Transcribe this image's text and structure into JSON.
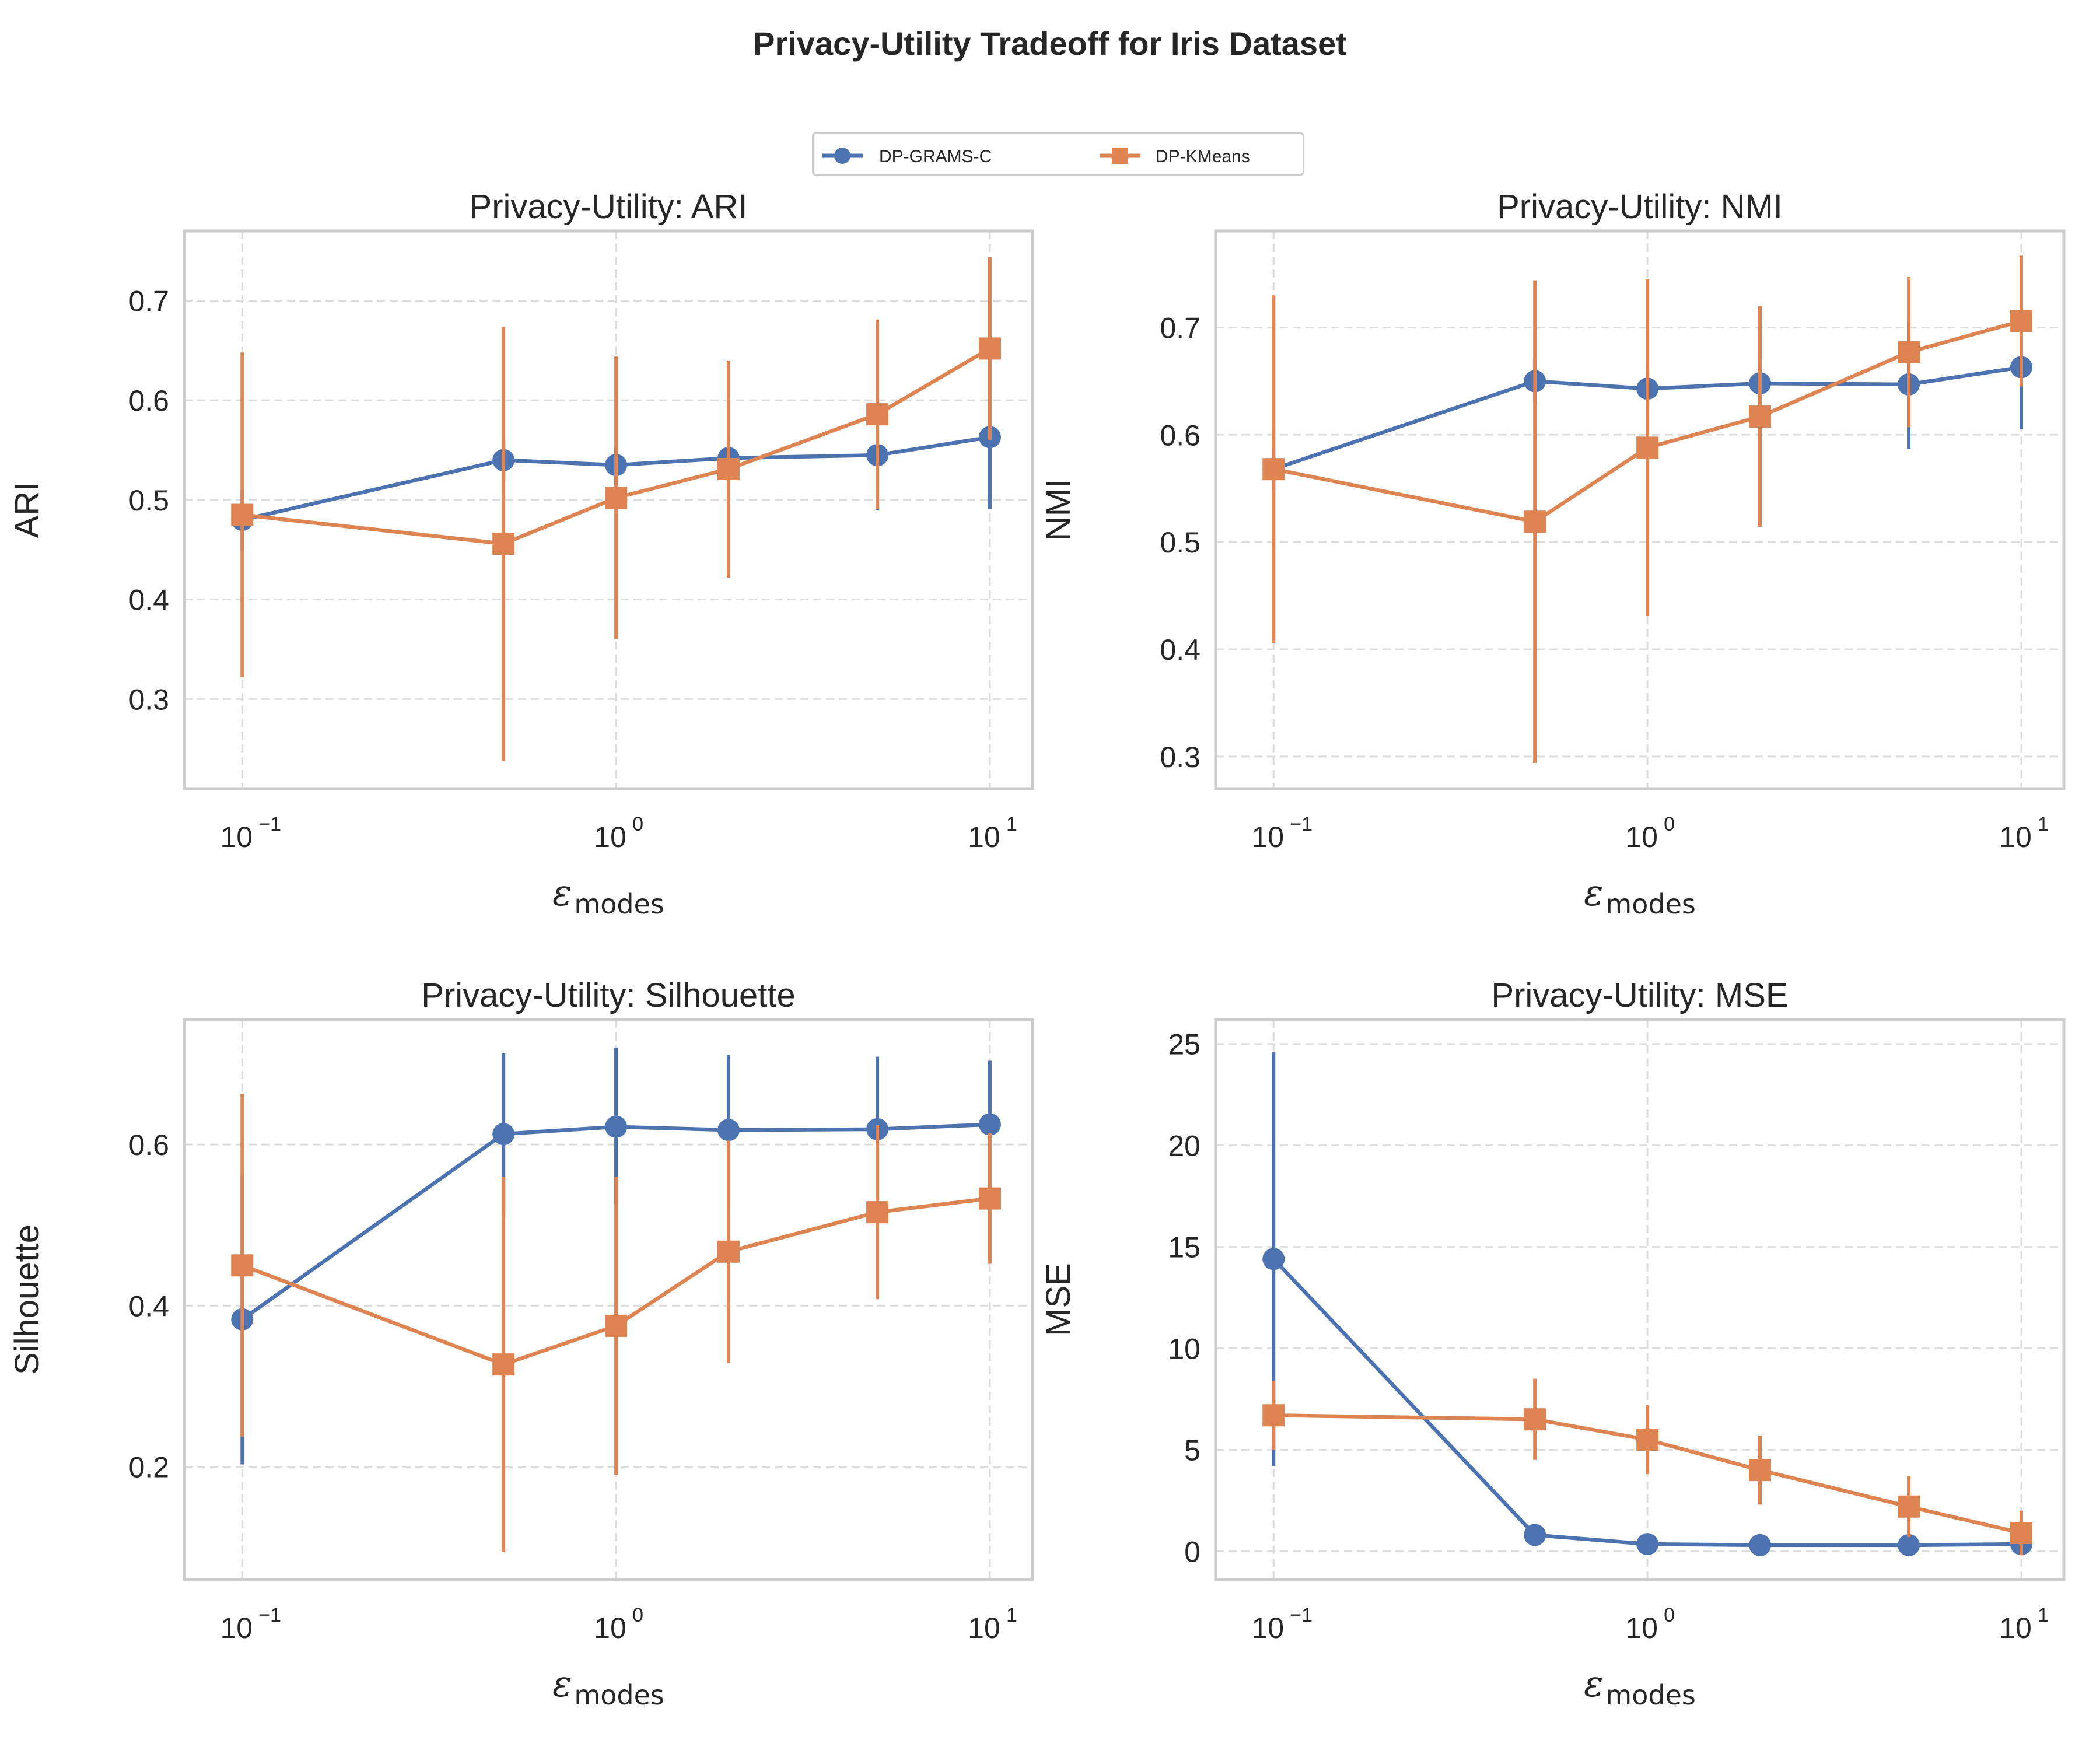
{
  "figure": {
    "title": "Privacy-Utility Tradeoff for Iris Dataset",
    "colors": {
      "DP-GRAMS-C": "#4c72b0",
      "DP-KMeans": "#dd8452",
      "grid": "#dddddd",
      "axes": "#cccccc",
      "text": "#262626"
    }
  },
  "legend": {
    "placement": "top-center",
    "items": [
      {
        "label": "DP-GRAMS-C",
        "marker": "circle",
        "color": "#4c72b0"
      },
      {
        "label": "DP-KMeans",
        "marker": "square",
        "color": "#dd8452"
      }
    ]
  },
  "chart_data": [
    {
      "type": "line",
      "title": "Privacy-Utility: ARI",
      "xlabel": "ε_modes",
      "ylabel": "ARI",
      "xscale": "log",
      "xlim": [
        0.07,
        13
      ],
      "ylim": [
        0.21,
        0.77
      ],
      "yticks": [
        0.3,
        0.4,
        0.5,
        0.6,
        0.7
      ],
      "ytick_labels": [
        "0.3",
        "0.4",
        "0.5",
        "0.6",
        "0.7"
      ],
      "grid": true,
      "x": [
        0.1,
        0.5,
        1,
        2,
        5,
        10
      ],
      "series": [
        {
          "name": "DP-GRAMS-C",
          "marker": "circle",
          "values": [
            0.48,
            0.54,
            0.535,
            0.542,
            0.545,
            0.563
          ],
          "err": [
            0.03,
            0.02,
            0.02,
            0.02,
            0.055,
            0.072
          ]
        },
        {
          "name": "DP-KMeans",
          "marker": "square",
          "values": [
            0.485,
            0.456,
            0.502,
            0.531,
            0.586,
            0.652
          ],
          "err": [
            0.163,
            0.218,
            0.142,
            0.109,
            0.095,
            0.092
          ]
        }
      ]
    },
    {
      "type": "line",
      "title": "Privacy-Utility: NMI",
      "xlabel": "ε_modes",
      "ylabel": "NMI",
      "xscale": "log",
      "xlim": [
        0.07,
        13
      ],
      "ylim": [
        0.27,
        0.79
      ],
      "yticks": [
        0.3,
        0.4,
        0.5,
        0.6,
        0.7
      ],
      "ytick_labels": [
        "0.3",
        "0.4",
        "0.5",
        "0.6",
        "0.7"
      ],
      "grid": true,
      "x": [
        0.1,
        0.5,
        1,
        2,
        5,
        10
      ],
      "series": [
        {
          "name": "DP-GRAMS-C",
          "marker": "circle",
          "values": [
            0.568,
            0.65,
            0.643,
            0.648,
            0.647,
            0.663
          ],
          "err": [
            0.02,
            0.02,
            0.02,
            0.02,
            0.06,
            0.058
          ]
        },
        {
          "name": "DP-KMeans",
          "marker": "square",
          "values": [
            0.568,
            0.519,
            0.588,
            0.617,
            0.677,
            0.706
          ],
          "err": [
            0.162,
            0.225,
            0.157,
            0.103,
            0.07,
            0.061
          ]
        }
      ]
    },
    {
      "type": "line",
      "title": "Privacy-Utility: Silhouette",
      "xlabel": "ε_modes",
      "ylabel": "Silhouette",
      "xscale": "log",
      "xlim": [
        0.07,
        13
      ],
      "ylim": [
        0.06,
        0.755
      ],
      "yticks": [
        0.2,
        0.4,
        0.6
      ],
      "ytick_labels": [
        "0.2",
        "0.4",
        "0.6"
      ],
      "grid": true,
      "x": [
        0.1,
        0.5,
        1,
        2,
        5,
        10
      ],
      "series": [
        {
          "name": "DP-GRAMS-C",
          "marker": "circle",
          "values": [
            0.383,
            0.613,
            0.622,
            0.618,
            0.619,
            0.625
          ],
          "err": [
            0.18,
            0.1,
            0.098,
            0.093,
            0.09,
            0.079
          ]
        },
        {
          "name": "DP-KMeans",
          "marker": "square",
          "values": [
            0.45,
            0.327,
            0.375,
            0.467,
            0.516,
            0.533
          ],
          "err": [
            0.213,
            0.233,
            0.185,
            0.138,
            0.108,
            0.081
          ]
        }
      ]
    },
    {
      "type": "line",
      "title": "Privacy-Utility: MSE",
      "xlabel": "ε_modes",
      "ylabel": "MSE",
      "xscale": "log",
      "xlim": [
        0.07,
        13
      ],
      "ylim": [
        -1.4,
        26.2
      ],
      "yticks": [
        0,
        5,
        10,
        15,
        20,
        25
      ],
      "ytick_labels": [
        "0",
        "5",
        "10",
        "15",
        "20",
        "25"
      ],
      "grid": true,
      "x": [
        0.1,
        0.5,
        1,
        2,
        5,
        10
      ],
      "series": [
        {
          "name": "DP-GRAMS-C",
          "marker": "circle",
          "values": [
            14.4,
            0.8,
            0.35,
            0.3,
            0.3,
            0.35
          ],
          "err": [
            10.2,
            0.15,
            0.1,
            0.1,
            0.1,
            0.1
          ]
        },
        {
          "name": "DP-KMeans",
          "marker": "square",
          "values": [
            6.7,
            6.5,
            5.5,
            4.0,
            2.2,
            0.9
          ],
          "err": [
            1.7,
            2.0,
            1.7,
            1.7,
            1.5,
            1.1
          ]
        }
      ]
    }
  ]
}
